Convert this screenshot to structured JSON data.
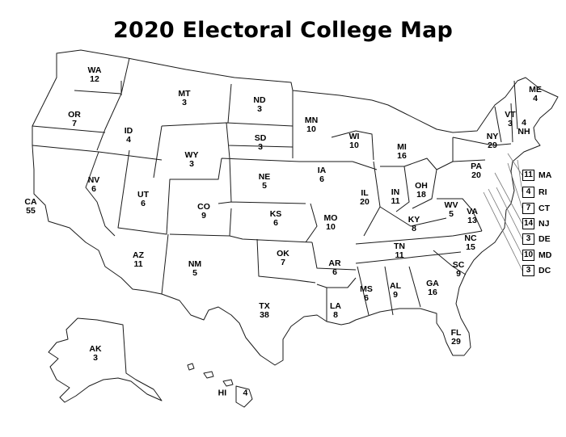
{
  "title": "2020 Electoral College Map",
  "colors": {
    "outline": "#1a1a1a",
    "fill": "#ffffff",
    "text": "#000000"
  },
  "map_data": {
    "type": "outline map of United States",
    "states": [
      {
        "abbr": "WA",
        "votes": "12"
      },
      {
        "abbr": "OR",
        "votes": "7"
      },
      {
        "abbr": "CA",
        "votes": "55"
      },
      {
        "abbr": "ID",
        "votes": "4"
      },
      {
        "abbr": "NV",
        "votes": "6"
      },
      {
        "abbr": "MT",
        "votes": "3"
      },
      {
        "abbr": "WY",
        "votes": "3"
      },
      {
        "abbr": "UT",
        "votes": "6"
      },
      {
        "abbr": "AZ",
        "votes": "11"
      },
      {
        "abbr": "CO",
        "votes": "9"
      },
      {
        "abbr": "NM",
        "votes": "5"
      },
      {
        "abbr": "ND",
        "votes": "3"
      },
      {
        "abbr": "SD",
        "votes": "3"
      },
      {
        "abbr": "NE",
        "votes": "5"
      },
      {
        "abbr": "KS",
        "votes": "6"
      },
      {
        "abbr": "OK",
        "votes": "7"
      },
      {
        "abbr": "TX",
        "votes": "38"
      },
      {
        "abbr": "MN",
        "votes": "10"
      },
      {
        "abbr": "IA",
        "votes": "6"
      },
      {
        "abbr": "MO",
        "votes": "10"
      },
      {
        "abbr": "AR",
        "votes": "6"
      },
      {
        "abbr": "LA",
        "votes": "8"
      },
      {
        "abbr": "WI",
        "votes": "10"
      },
      {
        "abbr": "IL",
        "votes": "20"
      },
      {
        "abbr": "MS",
        "votes": "6"
      },
      {
        "abbr": "MI",
        "votes": "16"
      },
      {
        "abbr": "IN",
        "votes": "11"
      },
      {
        "abbr": "OH",
        "votes": "18"
      },
      {
        "abbr": "KY",
        "votes": "8"
      },
      {
        "abbr": "TN",
        "votes": "11"
      },
      {
        "abbr": "AL",
        "votes": "9"
      },
      {
        "abbr": "GA",
        "votes": "16"
      },
      {
        "abbr": "FL",
        "votes": "29"
      },
      {
        "abbr": "SC",
        "votes": "9"
      },
      {
        "abbr": "NC",
        "votes": "15"
      },
      {
        "abbr": "VA",
        "votes": "13"
      },
      {
        "abbr": "WV",
        "votes": "5"
      },
      {
        "abbr": "PA",
        "votes": "20"
      },
      {
        "abbr": "NY",
        "votes": "29"
      },
      {
        "abbr": "VT",
        "votes": "3"
      },
      {
        "abbr": "NH",
        "votes": "4"
      },
      {
        "abbr": "ME",
        "votes": "4"
      },
      {
        "abbr": "AK",
        "votes": "3"
      },
      {
        "abbr": "HI",
        "votes": "4"
      }
    ],
    "small_states": [
      {
        "abbr": "MA",
        "votes": "11"
      },
      {
        "abbr": "RI",
        "votes": "4"
      },
      {
        "abbr": "CT",
        "votes": "7"
      },
      {
        "abbr": "NJ",
        "votes": "14"
      },
      {
        "abbr": "DE",
        "votes": "3"
      },
      {
        "abbr": "MD",
        "votes": "10"
      },
      {
        "abbr": "DC",
        "votes": "3"
      }
    ]
  }
}
